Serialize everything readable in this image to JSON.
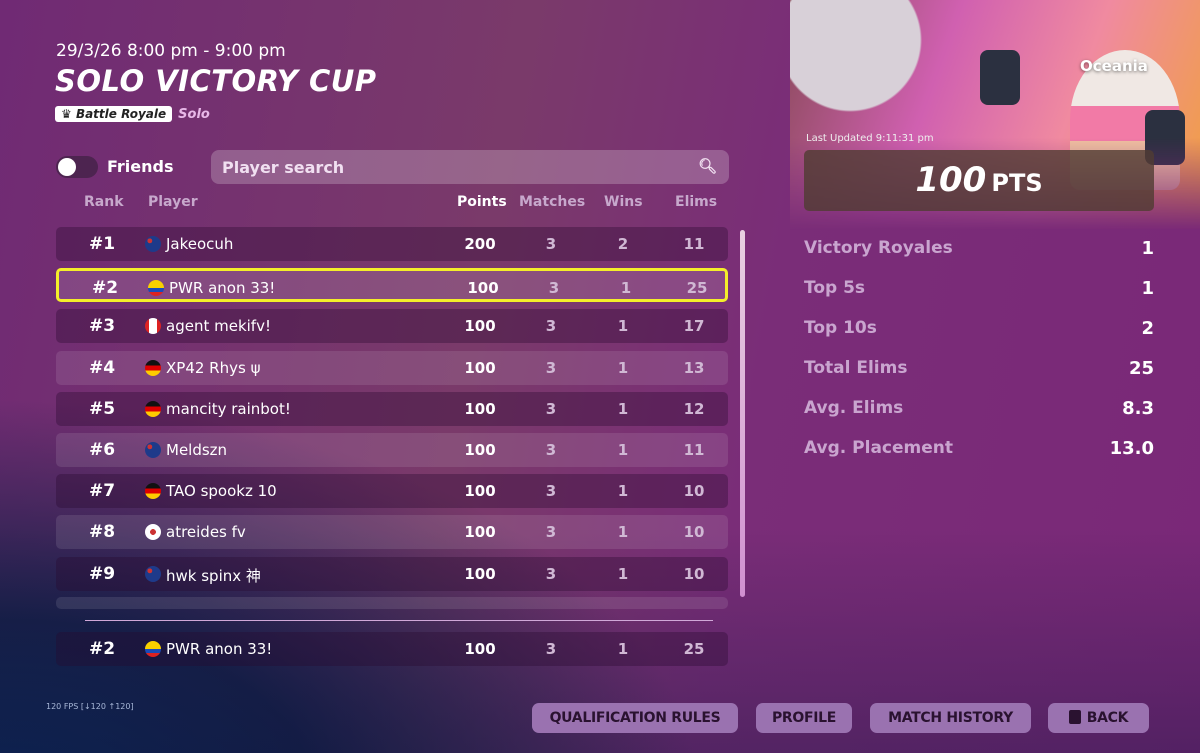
{
  "event": {
    "datetime": "29/3/26 8:00 pm - 9:00 pm",
    "title": "SOLO VICTORY CUP",
    "mode_badge": "Battle Royale",
    "mode_type": "Solo",
    "region": "Oceania"
  },
  "filters": {
    "friends_label": "Friends",
    "friends_on": false,
    "search_placeholder": "Player search"
  },
  "columns": {
    "rank": "Rank",
    "player": "Player",
    "points": "Points",
    "matches": "Matches",
    "wins": "Wins",
    "elims": "Elims"
  },
  "rows": [
    {
      "rank": "#1",
      "flag": "AU",
      "name": "Jakeocuh",
      "points": "200",
      "matches": "3",
      "wins": "2",
      "elims": "11"
    },
    {
      "rank": "#2",
      "flag": "CO",
      "name": "PWR anon 33!",
      "points": "100",
      "matches": "3",
      "wins": "1",
      "elims": "25"
    },
    {
      "rank": "#3",
      "flag": "CA",
      "name": "agent mekifv!",
      "points": "100",
      "matches": "3",
      "wins": "1",
      "elims": "17"
    },
    {
      "rank": "#4",
      "flag": "DE",
      "name": "XP42 Rhys ψ",
      "points": "100",
      "matches": "3",
      "wins": "1",
      "elims": "13"
    },
    {
      "rank": "#5",
      "flag": "DE",
      "name": "mancity rainbot!",
      "points": "100",
      "matches": "3",
      "wins": "1",
      "elims": "12"
    },
    {
      "rank": "#6",
      "flag": "AU",
      "name": "Meldszn",
      "points": "100",
      "matches": "3",
      "wins": "1",
      "elims": "11"
    },
    {
      "rank": "#7",
      "flag": "DE",
      "name": "TAO spookz 10",
      "points": "100",
      "matches": "3",
      "wins": "1",
      "elims": "10"
    },
    {
      "rank": "#8",
      "flag": "KR",
      "name": "atreides fv",
      "points": "100",
      "matches": "3",
      "wins": "1",
      "elims": "10"
    },
    {
      "rank": "#9",
      "flag": "AU",
      "name": "hwk spinx 神",
      "points": "100",
      "matches": "3",
      "wins": "1",
      "elims": "10"
    }
  ],
  "my_row": {
    "rank": "#2",
    "flag": "CO",
    "name": "PWR anon 33!",
    "points": "100",
    "matches": "3",
    "wins": "1",
    "elims": "25"
  },
  "summary": {
    "last_updated": "Last Updated 9:11:31 pm",
    "points_value": "100",
    "points_unit": "PTS",
    "stats": [
      {
        "label": "Victory Royales",
        "value": "1"
      },
      {
        "label": "Top 5s",
        "value": "1"
      },
      {
        "label": "Top 10s",
        "value": "2"
      },
      {
        "label": "Total Elims",
        "value": "25"
      },
      {
        "label": "Avg. Elims",
        "value": "8.3"
      },
      {
        "label": "Avg. Placement",
        "value": "13.0"
      }
    ]
  },
  "fps": "120 FPS [↓120 ↑120]",
  "buttons": {
    "qualification": "QUALIFICATION RULES",
    "profile": "PROFILE",
    "history": "MATCH HISTORY",
    "back": "BACK"
  },
  "colors": {
    "highlight": "#f4ee2a",
    "button": "#9a72b0"
  }
}
